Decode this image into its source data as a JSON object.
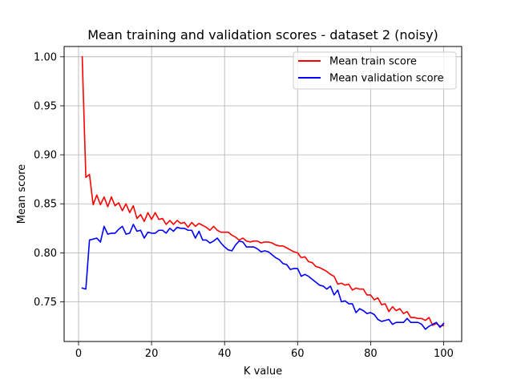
{
  "chart_data": {
    "type": "line",
    "title": "Mean training and validation scores - dataset 2 (noisy)",
    "xlabel": "K value",
    "ylabel": "Mean score",
    "xlim": [
      -3.95,
      104.95
    ],
    "ylim": [
      0.7095,
      1.0105
    ],
    "xticks": [
      0,
      20,
      40,
      60,
      80,
      100
    ],
    "xtick_labels": [
      "0",
      "20",
      "40",
      "60",
      "80",
      "100"
    ],
    "yticks": [
      0.75,
      0.8,
      0.85,
      0.9,
      0.95,
      1.0
    ],
    "ytick_labels": [
      "0.75",
      "0.80",
      "0.85",
      "0.90",
      "0.95",
      "1.00"
    ],
    "grid": true,
    "legend_position": "top-right",
    "x": [
      1,
      2,
      3,
      4,
      5,
      6,
      7,
      8,
      9,
      10,
      11,
      12,
      13,
      14,
      15,
      16,
      17,
      18,
      19,
      20,
      21,
      22,
      23,
      24,
      25,
      26,
      27,
      28,
      29,
      30,
      31,
      32,
      33,
      34,
      35,
      36,
      37,
      38,
      39,
      40,
      41,
      42,
      43,
      44,
      45,
      46,
      47,
      48,
      49,
      50,
      51,
      52,
      53,
      54,
      55,
      56,
      57,
      58,
      59,
      60,
      61,
      62,
      63,
      64,
      65,
      66,
      67,
      68,
      69,
      70,
      71,
      72,
      73,
      74,
      75,
      76,
      77,
      78,
      79,
      80,
      81,
      82,
      83,
      84,
      85,
      86,
      87,
      88,
      89,
      90,
      91,
      92,
      93,
      94,
      95,
      96,
      97,
      98,
      99,
      100
    ],
    "series": [
      {
        "name": "Mean train score",
        "color": "#ff0000",
        "values": [
          1.0,
          0.877,
          0.88,
          0.849,
          0.859,
          0.849,
          0.857,
          0.847,
          0.857,
          0.848,
          0.851,
          0.843,
          0.85,
          0.841,
          0.848,
          0.835,
          0.839,
          0.832,
          0.841,
          0.834,
          0.841,
          0.834,
          0.835,
          0.829,
          0.833,
          0.829,
          0.833,
          0.83,
          0.831,
          0.826,
          0.831,
          0.827,
          0.83,
          0.828,
          0.826,
          0.823,
          0.827,
          0.823,
          0.821,
          0.821,
          0.821,
          0.818,
          0.816,
          0.813,
          0.815,
          0.812,
          0.811,
          0.812,
          0.812,
          0.81,
          0.811,
          0.811,
          0.81,
          0.808,
          0.807,
          0.807,
          0.805,
          0.803,
          0.801,
          0.8,
          0.795,
          0.796,
          0.791,
          0.79,
          0.786,
          0.785,
          0.783,
          0.781,
          0.778,
          0.776,
          0.768,
          0.769,
          0.767,
          0.768,
          0.762,
          0.764,
          0.763,
          0.763,
          0.757,
          0.757,
          0.752,
          0.754,
          0.747,
          0.748,
          0.74,
          0.745,
          0.741,
          0.743,
          0.738,
          0.74,
          0.734,
          0.734,
          0.733,
          0.733,
          0.731,
          0.734,
          0.726,
          0.728,
          0.725,
          0.726
        ]
      },
      {
        "name": "Mean validation score",
        "color": "#0000ff",
        "values": [
          0.764,
          0.763,
          0.813,
          0.814,
          0.815,
          0.811,
          0.827,
          0.819,
          0.82,
          0.82,
          0.824,
          0.827,
          0.819,
          0.82,
          0.829,
          0.822,
          0.823,
          0.815,
          0.821,
          0.82,
          0.82,
          0.823,
          0.823,
          0.82,
          0.825,
          0.822,
          0.826,
          0.825,
          0.825,
          0.823,
          0.823,
          0.815,
          0.822,
          0.813,
          0.813,
          0.81,
          0.812,
          0.815,
          0.81,
          0.806,
          0.803,
          0.802,
          0.808,
          0.812,
          0.811,
          0.806,
          0.806,
          0.806,
          0.804,
          0.801,
          0.802,
          0.801,
          0.798,
          0.795,
          0.793,
          0.789,
          0.788,
          0.783,
          0.784,
          0.784,
          0.776,
          0.778,
          0.776,
          0.773,
          0.77,
          0.767,
          0.766,
          0.763,
          0.766,
          0.757,
          0.762,
          0.75,
          0.751,
          0.748,
          0.748,
          0.739,
          0.743,
          0.741,
          0.738,
          0.739,
          0.737,
          0.732,
          0.73,
          0.731,
          0.732,
          0.727,
          0.729,
          0.729,
          0.729,
          0.733,
          0.729,
          0.729,
          0.729,
          0.727,
          0.722,
          0.725,
          0.727,
          0.729,
          0.724,
          0.728
        ]
      }
    ]
  }
}
